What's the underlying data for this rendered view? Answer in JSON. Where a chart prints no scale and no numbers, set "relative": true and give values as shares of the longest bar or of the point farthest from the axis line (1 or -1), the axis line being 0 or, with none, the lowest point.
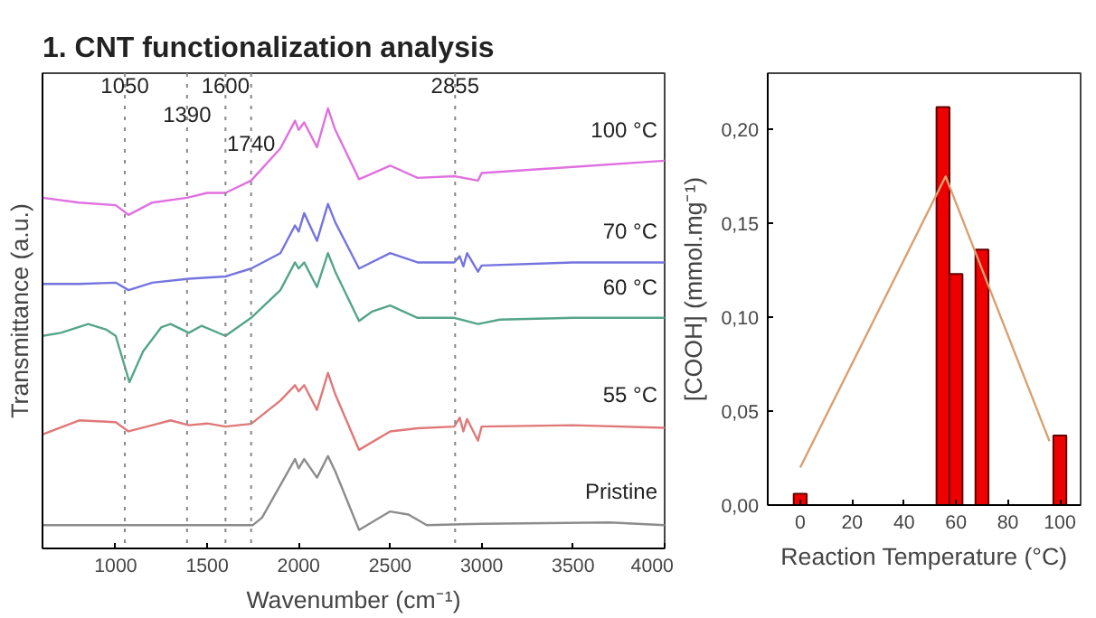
{
  "chart_data": [
    {
      "type": "line",
      "title": "1.    CNT functionalization analysis",
      "xlabel": "Wavenumber (cm⁻¹)",
      "ylabel": "Transmittance (a.u.)",
      "relative": true,
      "xlim": [
        600,
        4000
      ],
      "xticks": [
        1000,
        1500,
        2000,
        2500,
        3000,
        3500,
        4000
      ],
      "grid": false,
      "ref_lines": [
        {
          "axis": "x",
          "value": 1050,
          "label": "1050",
          "line_style": "dotted"
        },
        {
          "axis": "x",
          "value": 1390,
          "label": "1390",
          "line_style": "dotted"
        },
        {
          "axis": "x",
          "value": 1600,
          "label": "1600",
          "line_style": "dotted"
        },
        {
          "axis": "x",
          "value": 1740,
          "label": "1740",
          "line_style": "dotted"
        },
        {
          "axis": "x",
          "value": 2855,
          "label": "2855",
          "line_style": "dotted"
        }
      ],
      "series": [
        {
          "name": "Pristine",
          "color": "#8c8c8c",
          "x": [
            600,
            1000,
            1750,
            1800,
            1980,
            2000,
            2030,
            2100,
            2160,
            2200,
            2330,
            2500,
            2600,
            2700,
            3000,
            3700,
            4000
          ],
          "values": [
            0.053,
            0.053,
            0.053,
            0.07,
            0.203,
            0.182,
            0.203,
            0.161,
            0.21,
            0.175,
            0.042,
            0.084,
            0.077,
            0.053,
            0.056,
            0.059,
            0.053
          ]
        },
        {
          "name": "55 °C",
          "color": "#e07878",
          "x": [
            600,
            800,
            1000,
            1070,
            1200,
            1300,
            1400,
            1500,
            1600,
            1740,
            1900,
            1980,
            2000,
            2030,
            2100,
            2160,
            2200,
            2330,
            2500,
            2650,
            2850,
            2880,
            2900,
            2920,
            2980,
            3000,
            3500,
            4000
          ],
          "values": [
            0.259,
            0.291,
            0.287,
            0.266,
            0.28,
            0.291,
            0.28,
            0.284,
            0.277,
            0.283,
            0.336,
            0.371,
            0.357,
            0.371,
            0.315,
            0.399,
            0.35,
            0.224,
            0.266,
            0.273,
            0.277,
            0.297,
            0.266,
            0.294,
            0.245,
            0.277,
            0.28,
            0.274
          ]
        },
        {
          "name": "60 °C",
          "color": "#55a58a",
          "x": [
            600,
            700,
            850,
            950,
            1000,
            1075,
            1150,
            1250,
            1300,
            1400,
            1470,
            1600,
            1740,
            1900,
            1980,
            2000,
            2030,
            2100,
            2160,
            2200,
            2330,
            2400,
            2500,
            2650,
            2850,
            2980,
            3100,
            3500,
            4000
          ],
          "values": [
            0.483,
            0.49,
            0.51,
            0.497,
            0.483,
            0.378,
            0.448,
            0.503,
            0.51,
            0.49,
            0.506,
            0.483,
            0.524,
            0.587,
            0.65,
            0.636,
            0.65,
            0.594,
            0.671,
            0.629,
            0.517,
            0.538,
            0.552,
            0.524,
            0.524,
            0.51,
            0.52,
            0.524,
            0.524
          ]
        },
        {
          "name": "70 °C",
          "color": "#7474e0",
          "x": [
            600,
            800,
            1000,
            1070,
            1200,
            1400,
            1600,
            1740,
            1900,
            1980,
            2000,
            2030,
            2100,
            2160,
            2200,
            2330,
            2500,
            2650,
            2850,
            2880,
            2900,
            2920,
            2980,
            3000,
            3500,
            4000
          ],
          "values": [
            0.601,
            0.601,
            0.604,
            0.587,
            0.604,
            0.613,
            0.618,
            0.636,
            0.671,
            0.734,
            0.72,
            0.762,
            0.699,
            0.783,
            0.741,
            0.636,
            0.671,
            0.65,
            0.65,
            0.664,
            0.641,
            0.671,
            0.629,
            0.643,
            0.65,
            0.65
          ]
        },
        {
          "name": "100 °C",
          "color": "#e070e0",
          "x": [
            600,
            800,
            1000,
            1070,
            1200,
            1390,
            1500,
            1600,
            1740,
            1900,
            1980,
            2000,
            2030,
            2100,
            2160,
            2200,
            2330,
            2500,
            2650,
            2850,
            2980,
            3000,
            3500,
            4000
          ],
          "values": [
            0.797,
            0.786,
            0.78,
            0.758,
            0.786,
            0.797,
            0.808,
            0.808,
            0.836,
            0.909,
            0.972,
            0.951,
            0.968,
            0.912,
            1.0,
            0.951,
            0.839,
            0.87,
            0.842,
            0.846,
            0.836,
            0.853,
            0.867,
            0.881
          ]
        }
      ]
    },
    {
      "type": "bar",
      "xlabel": "Reaction Temperature (°C)",
      "ylabel": "[COOH] (mmol.mg⁻¹)",
      "x": [
        0,
        55,
        60,
        70,
        100
      ],
      "xlim": [
        -12.5,
        108
      ],
      "xticks": [
        0,
        20,
        40,
        60,
        80,
        100
      ],
      "ylim": [
        0,
        0.23
      ],
      "yticks": [
        {
          "value": 0,
          "label": "0,00"
        },
        {
          "value": 0.05,
          "label": "0,05"
        },
        {
          "value": 0.1,
          "label": "0,10"
        },
        {
          "value": 0.15,
          "label": "0,15"
        },
        {
          "value": 0.2,
          "label": "0,20"
        }
      ],
      "grid": false,
      "series": [
        {
          "type": "bar",
          "color": "#ee0000",
          "values": [
            0.006,
            0.212,
            0.123,
            0.136,
            0.037
          ]
        },
        {
          "type": "line",
          "color": "#d9a070",
          "x": [
            0,
            56,
            96
          ],
          "values": [
            0.02,
            0.175,
            0.034
          ]
        }
      ]
    }
  ]
}
